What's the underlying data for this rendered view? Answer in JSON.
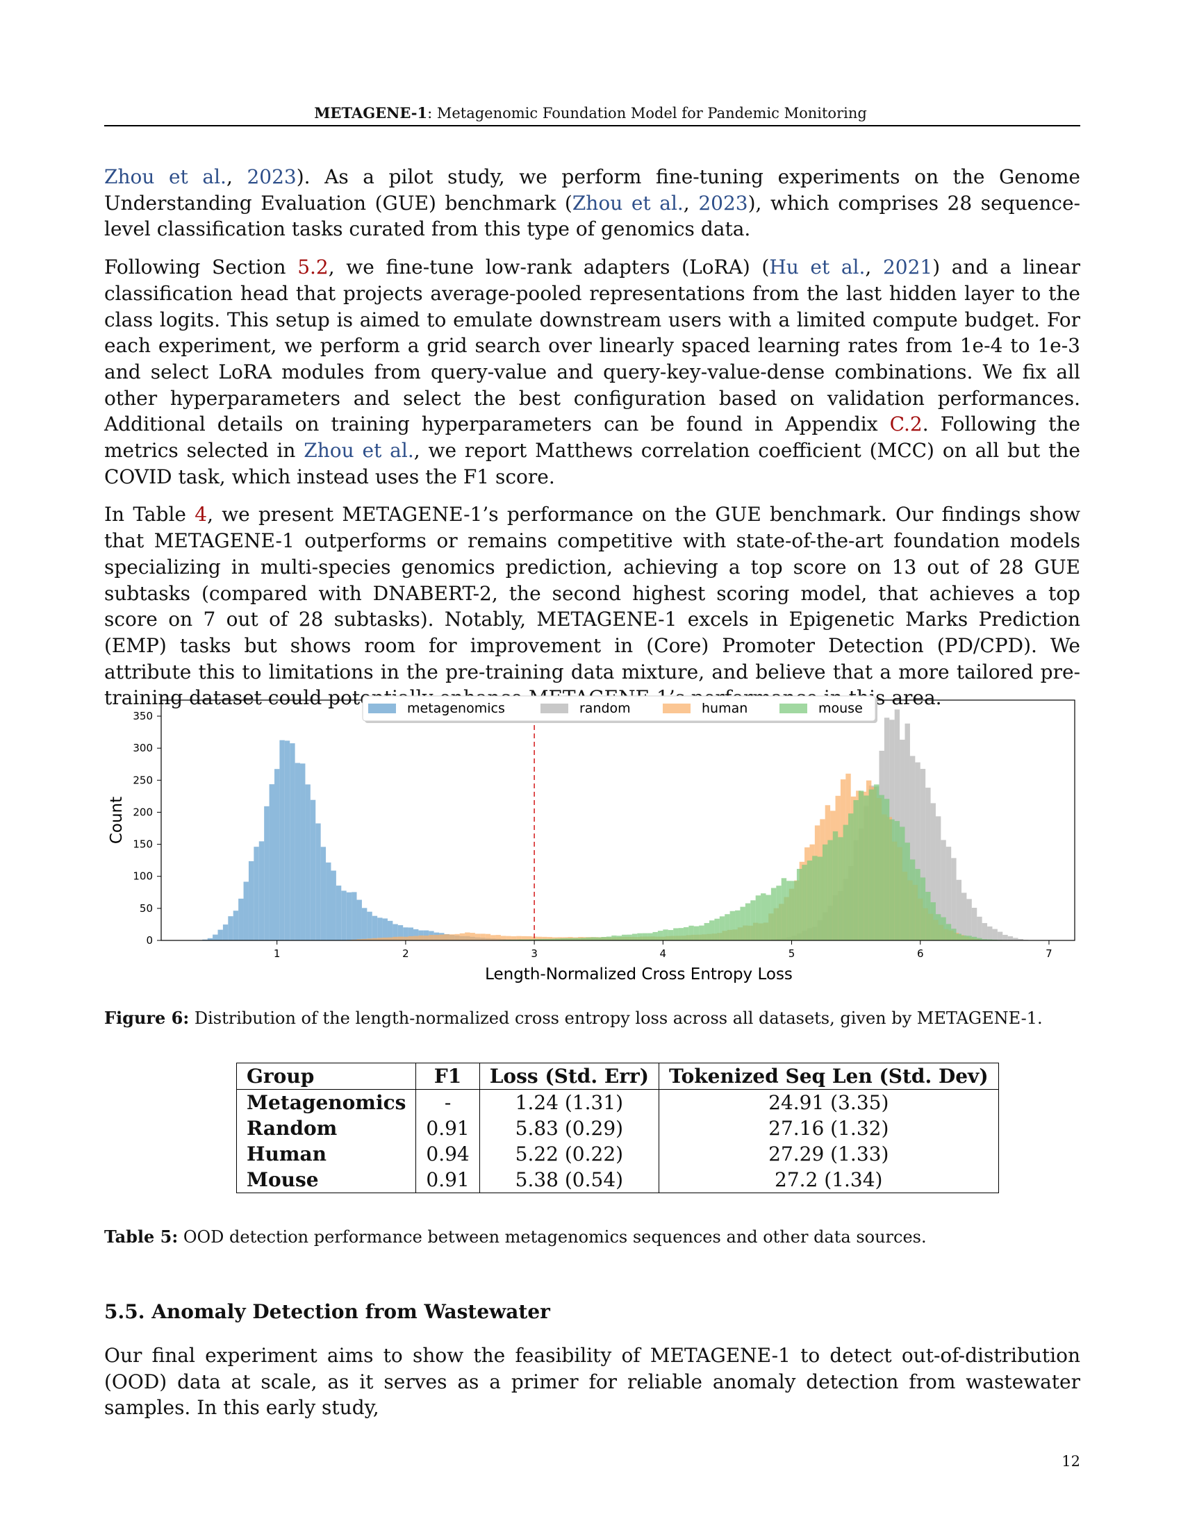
{
  "header": {
    "title_bold": "METAGENE-1",
    "title_rest": ": Metagenomic Foundation Model for Pandemic Monitoring"
  },
  "para1": {
    "cite1": "Zhou et al.",
    "sep1": ", ",
    "year1": "2023",
    "t1": "). As a pilot study, we perform fine-tuning experiments on the Genome Understanding Evaluation (GUE) benchmark (",
    "cite2": "Zhou et al.",
    "sep2": ", ",
    "year2": "2023",
    "t2": "), which comprises 28 sequence-level classification tasks curated from this type of genomics data."
  },
  "para2": {
    "t1": "Following Section ",
    "ref1": "5.2",
    "t2": ", we fine-tune low-rank adapters (LoRA) (",
    "cite1": "Hu et al.",
    "sep1": ", ",
    "year1": "2021",
    "t3": ") and a linear classification head that projects average-pooled representations from the last hidden layer to the class logits. This setup is aimed to emulate downstream users with a limited compute budget. For each experiment, we perform a grid search over linearly spaced learning rates from 1e-4 to 1e-3 and select LoRA modules from query-value and query-key-value-dense combinations. We fix all other hyperparameters and select the best configuration based on validation performances. Additional details on training hyperparameters can be found in Appendix ",
    "ref2": "C.2",
    "t4": ". Following the metrics selected in ",
    "cite2": "Zhou et al.",
    "t5": ", we report Matthews correlation coefficient (MCC) on all but the COVID task, which instead uses the F1 score."
  },
  "para3": {
    "t1": "In Table ",
    "ref1": "4",
    "t2": ", we present METAGENE-1’s performance on the GUE benchmark. Our findings show that METAGENE-1 outperforms or remains competitive with state-of-the-art foundation models specializing in multi-species genomics prediction, achieving a top score on 13 out of 28 GUE subtasks (compared with DNABERT-2, the second highest scoring model, that achieves a top score on 7 out of 28 subtasks). Notably, METAGENE-1 excels in Epigenetic Marks Prediction (EMP) tasks but shows room for improvement in (Core) Promoter Detection (PD/CPD). We attribute this to limitations in the pre-training data mixture, and believe that a more tailored pre-training dataset could potentially enhance METAGENE-1’s performance in this area."
  },
  "chart_data": {
    "type": "bar",
    "subtype": "histogram",
    "title": "",
    "xlabel": "Length-Normalized Cross Entropy Loss",
    "ylabel": "Count",
    "xlim": [
      0.1,
      7.2
    ],
    "ylim": [
      0,
      375
    ],
    "xticks": [
      "1",
      "2",
      "3",
      "4",
      "5",
      "6",
      "7"
    ],
    "yticks": [
      "0",
      "50",
      "100",
      "150",
      "200",
      "250",
      "300",
      "350"
    ],
    "legend_placement": "top-center",
    "threshold_line": 3.0,
    "bin_width": 0.04,
    "series": [
      {
        "name": "metagenomics",
        "color": "#7aaed6",
        "peaks": [
          {
            "x": 0.42,
            "y": 0
          },
          {
            "x": 0.5,
            "y": 5
          },
          {
            "x": 0.6,
            "y": 25
          },
          {
            "x": 0.7,
            "y": 55
          },
          {
            "x": 0.8,
            "y": 115
          },
          {
            "x": 0.9,
            "y": 175
          },
          {
            "x": 1.0,
            "y": 270
          },
          {
            "x": 1.08,
            "y": 315
          },
          {
            "x": 1.15,
            "y": 290
          },
          {
            "x": 1.22,
            "y": 255
          },
          {
            "x": 1.3,
            "y": 200
          },
          {
            "x": 1.4,
            "y": 125
          },
          {
            "x": 1.5,
            "y": 85
          },
          {
            "x": 1.6,
            "y": 70
          },
          {
            "x": 1.7,
            "y": 48
          },
          {
            "x": 1.8,
            "y": 35
          },
          {
            "x": 1.9,
            "y": 27
          },
          {
            "x": 2.0,
            "y": 20
          },
          {
            "x": 2.2,
            "y": 14
          },
          {
            "x": 2.4,
            "y": 8
          },
          {
            "x": 2.6,
            "y": 4
          },
          {
            "x": 2.8,
            "y": 2
          },
          {
            "x": 3.0,
            "y": 1
          },
          {
            "x": 3.4,
            "y": 0
          }
        ]
      },
      {
        "name": "random",
        "color": "#b3b3b3",
        "peaks": [
          {
            "x": 4.8,
            "y": 0
          },
          {
            "x": 5.0,
            "y": 5
          },
          {
            "x": 5.2,
            "y": 25
          },
          {
            "x": 5.4,
            "y": 85
          },
          {
            "x": 5.55,
            "y": 175
          },
          {
            "x": 5.7,
            "y": 290
          },
          {
            "x": 5.78,
            "y": 360
          },
          {
            "x": 5.85,
            "y": 335
          },
          {
            "x": 5.95,
            "y": 300
          },
          {
            "x": 6.05,
            "y": 250
          },
          {
            "x": 6.15,
            "y": 185
          },
          {
            "x": 6.25,
            "y": 125
          },
          {
            "x": 6.35,
            "y": 72
          },
          {
            "x": 6.45,
            "y": 38
          },
          {
            "x": 6.55,
            "y": 20
          },
          {
            "x": 6.65,
            "y": 10
          },
          {
            "x": 6.75,
            "y": 3
          },
          {
            "x": 6.85,
            "y": 0
          }
        ]
      },
      {
        "name": "human",
        "color": "#f9b06a",
        "peaks": [
          {
            "x": 1.5,
            "y": 0
          },
          {
            "x": 1.8,
            "y": 4
          },
          {
            "x": 2.2,
            "y": 8
          },
          {
            "x": 2.5,
            "y": 12
          },
          {
            "x": 2.8,
            "y": 7
          },
          {
            "x": 3.2,
            "y": 5
          },
          {
            "x": 3.6,
            "y": 5
          },
          {
            "x": 4.0,
            "y": 6
          },
          {
            "x": 4.4,
            "y": 10
          },
          {
            "x": 4.8,
            "y": 30
          },
          {
            "x": 5.0,
            "y": 75
          },
          {
            "x": 5.15,
            "y": 155
          },
          {
            "x": 5.3,
            "y": 215
          },
          {
            "x": 5.45,
            "y": 245
          },
          {
            "x": 5.6,
            "y": 235
          },
          {
            "x": 5.75,
            "y": 185
          },
          {
            "x": 5.9,
            "y": 105
          },
          {
            "x": 6.05,
            "y": 48
          },
          {
            "x": 6.2,
            "y": 18
          },
          {
            "x": 6.35,
            "y": 6
          },
          {
            "x": 6.5,
            "y": 0
          }
        ]
      },
      {
        "name": "mouse",
        "color": "#7dc97d",
        "peaks": [
          {
            "x": 2.6,
            "y": 0
          },
          {
            "x": 3.0,
            "y": 2
          },
          {
            "x": 3.5,
            "y": 5
          },
          {
            "x": 3.9,
            "y": 12
          },
          {
            "x": 4.3,
            "y": 25
          },
          {
            "x": 4.6,
            "y": 50
          },
          {
            "x": 4.9,
            "y": 85
          },
          {
            "x": 5.1,
            "y": 110
          },
          {
            "x": 5.3,
            "y": 150
          },
          {
            "x": 5.45,
            "y": 195
          },
          {
            "x": 5.6,
            "y": 235
          },
          {
            "x": 5.72,
            "y": 230
          },
          {
            "x": 5.85,
            "y": 175
          },
          {
            "x": 6.0,
            "y": 100
          },
          {
            "x": 6.15,
            "y": 40
          },
          {
            "x": 6.3,
            "y": 10
          },
          {
            "x": 6.5,
            "y": 2
          },
          {
            "x": 6.7,
            "y": 0
          }
        ]
      }
    ]
  },
  "figure": {
    "caption_label": "Figure 6:",
    "caption_text": " Distribution of the length-normalized cross entropy loss across all datasets, given by METAGENE-1."
  },
  "table": {
    "headers": [
      "Group",
      "F1",
      "Loss (Std. Err)",
      "Tokenized Seq Len (Std. Dev)"
    ],
    "rows": [
      [
        "Metagenomics",
        "-",
        "1.24 (1.31)",
        "24.91 (3.35)"
      ],
      [
        "Random",
        "0.91",
        "5.83 (0.29)",
        "27.16 (1.32)"
      ],
      [
        "Human",
        "0.94",
        "5.22 (0.22)",
        "27.29 (1.33)"
      ],
      [
        "Mouse",
        "0.91",
        "5.38 (0.54)",
        "27.2 (1.34)"
      ]
    ],
    "caption_label": "Table 5:",
    "caption_text": " OOD detection performance between metagenomics sequences and other data sources."
  },
  "section": {
    "title": "5.5.  Anomaly Detection from Wastewater"
  },
  "para4": {
    "text": "Our final experiment aims to show the feasibility of METAGENE-1 to detect out-of-distribution (OOD) data at scale, as it serves as a primer for reliable anomaly detection from wastewater samples. In this early study,"
  },
  "page_number": "12"
}
